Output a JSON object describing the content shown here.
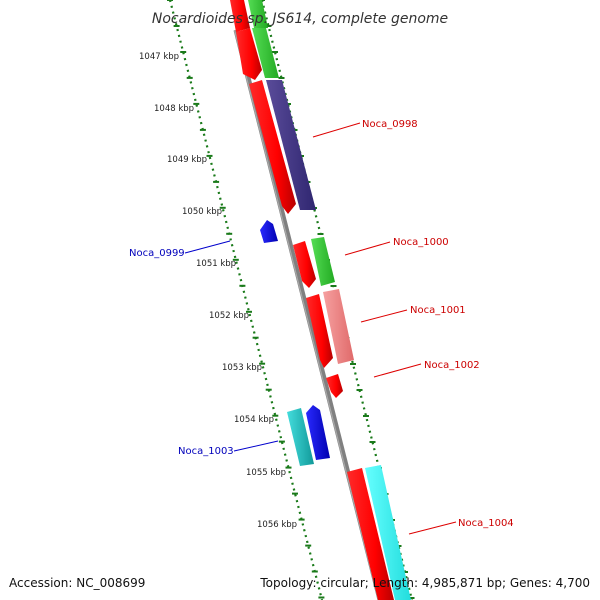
{
  "title": "Nocardioides sp. JS614, complete genome",
  "footer": {
    "accession": "Accession: NC_008699",
    "stats": "Topology: circular; Length: 4,985,871 bp; Genes: 4,700"
  },
  "colors": {
    "backbone": "#808080",
    "cds_track": "#ff0000",
    "forward_label": "#cc0000",
    "reverse_label": "#0000bb",
    "tick": "#1a7a1a"
  },
  "kbp_labels": [
    "1047 kbp",
    "1048 kbp",
    "1049 kbp",
    "1050 kbp",
    "1051 kbp",
    "1052 kbp",
    "1053 kbp",
    "1054 kbp",
    "1055 kbp",
    "1056 kbp"
  ],
  "genes": [
    {
      "name": "Noca_0998",
      "strand": "forward"
    },
    {
      "name": "Noca_0999",
      "strand": "reverse"
    },
    {
      "name": "Noca_1000",
      "strand": "forward"
    },
    {
      "name": "Noca_1001",
      "strand": "forward"
    },
    {
      "name": "Noca_1002",
      "strand": "forward"
    },
    {
      "name": "Noca_1003",
      "strand": "reverse"
    },
    {
      "name": "Noca_1004",
      "strand": "forward"
    }
  ]
}
